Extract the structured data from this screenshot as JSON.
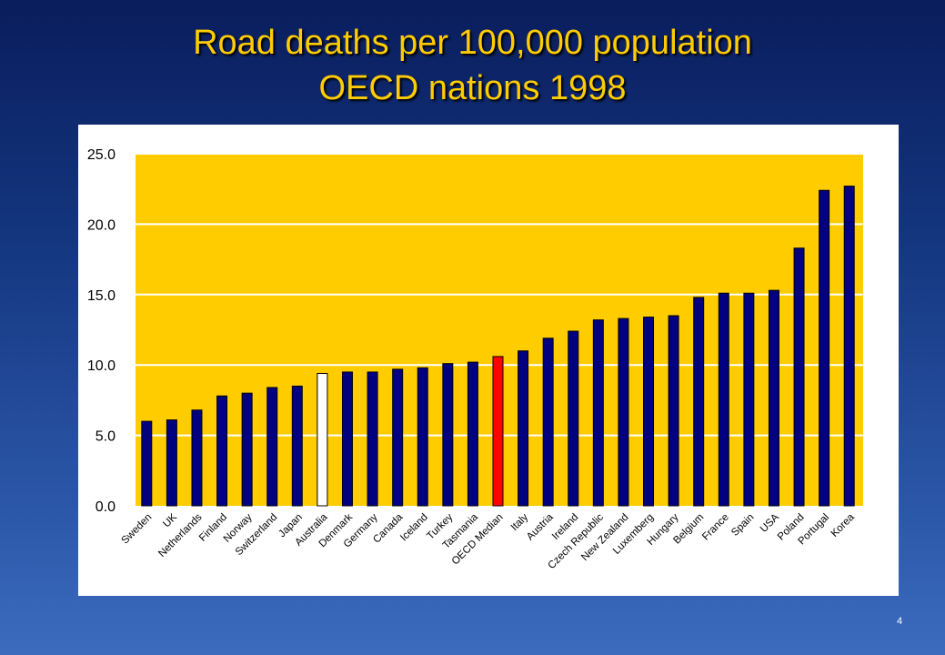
{
  "slide": {
    "title_line1": "Road deaths per 100,000 population",
    "title_line2": "OECD nations 1998",
    "page_number": "4"
  },
  "colors": {
    "background": "#13357e",
    "title": "#ffcc00",
    "plot_area": "#ffcc00",
    "bar_default": "#000080",
    "bar_australia": "#ffffff",
    "bar_oecd_median": "#ff0000"
  },
  "chart_data": {
    "type": "bar",
    "title": "Road deaths per 100,000 population OECD nations 1998",
    "xlabel": "",
    "ylabel": "",
    "ylim": [
      0,
      25
    ],
    "yticks": [
      "0.0",
      "5.0",
      "10.0",
      "15.0",
      "20.0",
      "25.0"
    ],
    "grid": "horizontal",
    "categories": [
      "Sweden",
      "UK",
      "Netherlands",
      "Finland",
      "Norway",
      "Switzerland",
      "Japan",
      "Australia",
      "Denmark",
      "Germany",
      "Canada",
      "Iceland",
      "Turkey",
      "Tasmania",
      "OECD Median",
      "Italy",
      "Austria",
      "Ireland",
      "Czech Republic",
      "New Zealand",
      "Luxemberg",
      "Hungary",
      "Belgium",
      "France",
      "Spain",
      "USA",
      "Poland",
      "Portugal",
      "Korea"
    ],
    "values": [
      6.0,
      6.1,
      6.8,
      7.8,
      8.0,
      8.4,
      8.5,
      9.4,
      9.5,
      9.5,
      9.7,
      9.8,
      10.1,
      10.2,
      10.6,
      11.0,
      11.9,
      12.4,
      13.2,
      13.3,
      13.4,
      13.5,
      14.8,
      15.1,
      15.1,
      15.3,
      18.3,
      22.4,
      22.7
    ],
    "highlight": {
      "Australia": "#ffffff",
      "OECD Median": "#ff0000"
    }
  }
}
